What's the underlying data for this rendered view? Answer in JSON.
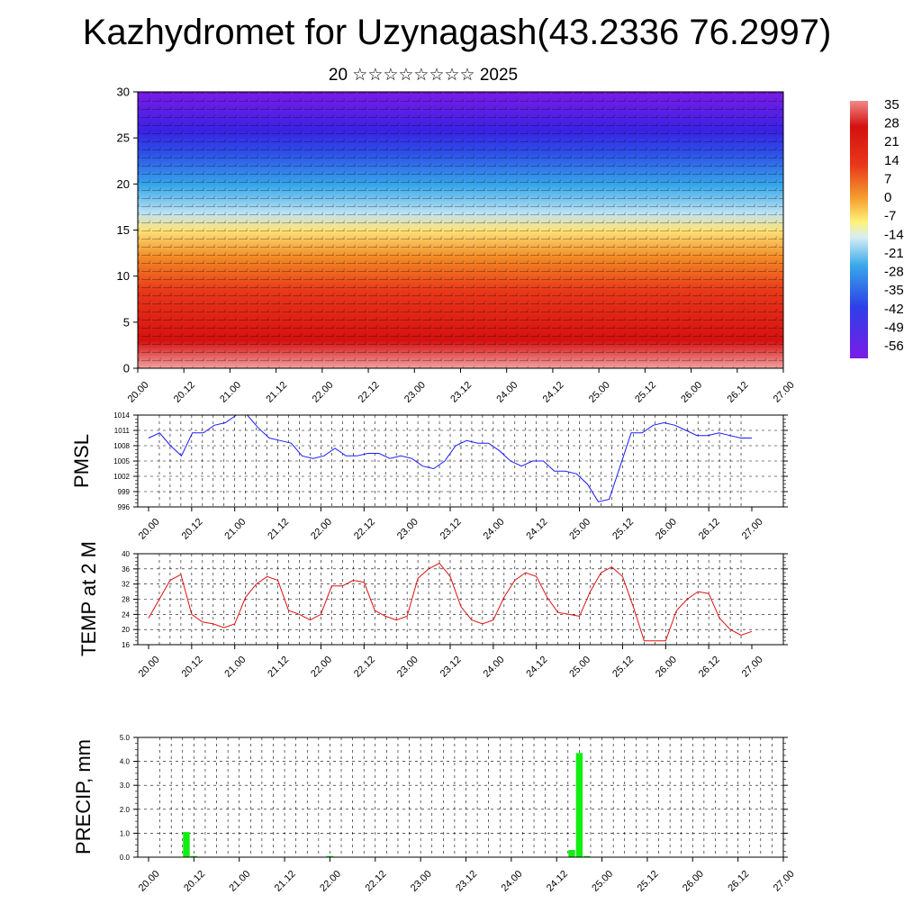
{
  "title": "Kazhydromet for Uzynagash(43.2336 76.2997)",
  "subtitle": "20 ☆☆☆☆☆☆☆☆ 2025",
  "time_labels": [
    "20.00",
    "20.12",
    "21.00",
    "21.12",
    "22.00",
    "22.12",
    "23.00",
    "23.12",
    "24.00",
    "24.12",
    "25.00",
    "25.12",
    "26.00",
    "26.12",
    "27.00"
  ],
  "colors": {
    "pmsl_line": "#1a1aff",
    "temp_line": "#e01010",
    "precip_bar": "#11ee11",
    "palette": [
      "#7b1fe8",
      "#3c2fe8",
      "#2a8fe8",
      "#9fd8f0",
      "#fff27a",
      "#f5b030",
      "#e8501f",
      "#cc0a0a",
      "#f08080"
    ]
  },
  "chart_data": [
    {
      "type": "heatmap",
      "description_key": "cross_section",
      "ylim": [
        0,
        30
      ],
      "yticks": [
        0,
        5,
        10,
        15,
        20,
        25,
        30
      ],
      "colorbar_labels": [
        "35",
        "28",
        "21",
        "14",
        "7",
        "0",
        "-7",
        "-14",
        "-21",
        "-28",
        "-35",
        "-42",
        "-49",
        "-56"
      ],
      "overlay": "wind barbs"
    },
    {
      "type": "line",
      "ylabel": "PMSL",
      "ylim": [
        996,
        1014
      ],
      "yticks": [
        "996",
        "999",
        "1002",
        "1005",
        "1008",
        "1011",
        "1014"
      ],
      "values": [
        1009.5,
        1010.5,
        1008,
        1006,
        1010.5,
        1010.5,
        1012,
        1012.5,
        1014,
        1014,
        1011.5,
        1009.5,
        1009,
        1008.5,
        1006,
        1005.5,
        1006,
        1007.5,
        1006,
        1006,
        1006.5,
        1006.5,
        1005.5,
        1006,
        1005.5,
        1004,
        1003.5,
        1005,
        1008,
        1009,
        1008.5,
        1008.5,
        1007,
        1005,
        1004,
        1005,
        1005,
        1003,
        1003,
        1002.5,
        1000.5,
        997,
        997.5,
        1004,
        1010.5,
        1010.5,
        1012,
        1012.5,
        1012,
        1011,
        1010,
        1010,
        1010.5,
        1010,
        1009.5,
        1009.5
      ]
    },
    {
      "type": "line",
      "ylabel": "TEMP at 2 M",
      "ylim": [
        16,
        40
      ],
      "yticks": [
        "16",
        "20",
        "24",
        "28",
        "32",
        "36",
        "40"
      ],
      "values": [
        23,
        28,
        33,
        34.5,
        24,
        22,
        21.5,
        20.5,
        21.5,
        28.5,
        32,
        34,
        33,
        25,
        24,
        22.5,
        24,
        31.5,
        31.5,
        33,
        32.5,
        25,
        23.5,
        22.5,
        23.5,
        33.5,
        36,
        37.5,
        34,
        26,
        22.5,
        21.5,
        22.5,
        28.5,
        33,
        35,
        34,
        28.5,
        24.5,
        24,
        23.5,
        30,
        35,
        36.5,
        34,
        26,
        17,
        17,
        17,
        25,
        28,
        30,
        29.5,
        23,
        20,
        18.5,
        19.5
      ]
    },
    {
      "type": "bar",
      "ylabel": "PRECIP, mm",
      "ylim": [
        0,
        5
      ],
      "yticks": [
        "0.0",
        "1.0",
        "2.0",
        "3.0",
        "4.0",
        "5.0"
      ],
      "values": [
        0,
        0,
        0,
        0,
        0,
        1.05,
        0.05,
        0,
        0,
        0,
        0,
        0,
        0,
        0,
        0,
        0,
        0,
        0,
        0,
        0,
        0,
        0,
        0,
        0,
        0.05,
        0,
        0,
        0,
        0,
        0,
        0,
        0,
        0,
        0,
        0,
        0,
        0,
        0,
        0,
        0,
        0,
        0,
        0,
        0,
        0,
        0,
        0,
        0,
        0,
        0,
        0,
        0,
        0,
        0,
        0,
        0,
        0.3,
        4.35,
        0.05,
        0,
        0,
        0,
        0,
        0,
        0,
        0,
        0,
        0,
        0,
        0,
        0,
        0,
        0,
        0,
        0,
        0,
        0,
        0,
        0,
        0,
        0
      ]
    }
  ]
}
